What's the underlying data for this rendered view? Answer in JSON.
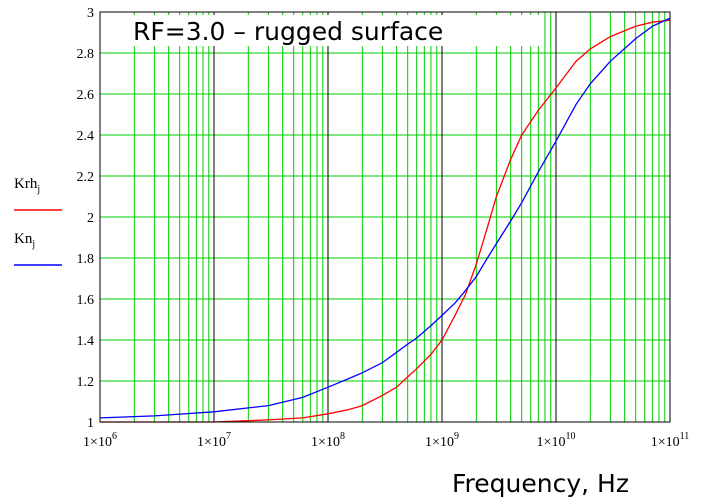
{
  "chart_data": {
    "type": "line",
    "title": "RF=3.0 – rugged surface",
    "xlabel": "Frequency, Hz",
    "ylabel": "",
    "x_scale": "log",
    "xlim": [
      1000000,
      100000000000
    ],
    "ylim": [
      1,
      3
    ],
    "x_ticks": [
      1000000,
      10000000,
      100000000,
      1000000000,
      10000000000,
      100000000000
    ],
    "x_tick_labels": [
      {
        "mant": "1×10",
        "exp": "6"
      },
      {
        "mant": "1×10",
        "exp": "7"
      },
      {
        "mant": "1×10",
        "exp": "8"
      },
      {
        "mant": "1×10",
        "exp": "9"
      },
      {
        "mant": "1×10",
        "exp": "10"
      },
      {
        "mant": "1×10",
        "exp": "11"
      }
    ],
    "y_ticks": [
      1,
      1.2,
      1.4,
      1.6,
      1.8,
      2,
      2.2,
      2.4,
      2.6,
      2.8,
      3
    ],
    "y_tick_labels": [
      "1",
      "1.2",
      "1.4",
      "1.6",
      "1.8",
      "2",
      "2.2",
      "2.4",
      "2.6",
      "2.8",
      "3"
    ],
    "grid": true,
    "grid_color": "#00cc00",
    "decade_line_color": "#000000",
    "legend": {
      "placement": "left",
      "items": [
        {
          "base": "Krh",
          "sub": "j",
          "color": "#ff0000"
        },
        {
          "base": "Kn",
          "sub": "j",
          "color": "#0000ff"
        }
      ]
    },
    "series": [
      {
        "label": "Krh",
        "color": "#ff0000",
        "x": [
          1000000,
          3000000,
          10000000,
          30000000,
          60000000,
          100000000,
          150000000,
          200000000,
          300000000,
          400000000,
          500000000,
          600000000,
          800000000,
          1000000000,
          1300000000,
          1600000000,
          2000000000,
          2500000000,
          3000000000,
          4000000000,
          5000000000,
          7000000000,
          10000000000,
          15000000000,
          20000000000,
          30000000000,
          50000000000,
          70000000000,
          100000000000
        ],
        "y": [
          1.0,
          1.0,
          1.0,
          1.01,
          1.02,
          1.04,
          1.06,
          1.08,
          1.13,
          1.17,
          1.22,
          1.26,
          1.33,
          1.4,
          1.52,
          1.62,
          1.77,
          1.95,
          2.1,
          2.28,
          2.4,
          2.52,
          2.63,
          2.76,
          2.82,
          2.88,
          2.93,
          2.95,
          2.96
        ]
      },
      {
        "label": "Kn",
        "color": "#0000ff",
        "x": [
          1000000,
          3000000,
          10000000,
          30000000,
          60000000,
          100000000,
          150000000,
          200000000,
          300000000,
          400000000,
          500000000,
          600000000,
          800000000,
          1000000000,
          1300000000,
          1600000000,
          2000000000,
          2500000000,
          3000000000,
          4000000000,
          5000000000,
          7000000000,
          10000000000,
          15000000000,
          20000000000,
          30000000000,
          50000000000,
          70000000000,
          100000000000
        ],
        "y": [
          1.02,
          1.03,
          1.05,
          1.08,
          1.12,
          1.17,
          1.21,
          1.24,
          1.29,
          1.34,
          1.38,
          1.41,
          1.47,
          1.52,
          1.58,
          1.64,
          1.71,
          1.8,
          1.87,
          1.98,
          2.07,
          2.22,
          2.37,
          2.55,
          2.65,
          2.76,
          2.87,
          2.93,
          2.97
        ]
      }
    ]
  }
}
